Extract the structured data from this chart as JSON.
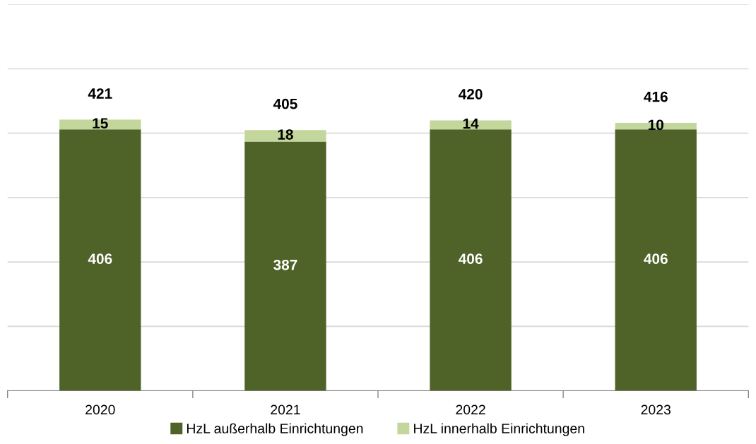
{
  "chart_data": {
    "type": "bar",
    "stacked": true,
    "categories": [
      "2020",
      "2021",
      "2022",
      "2023"
    ],
    "series": [
      {
        "name": "HzL außerhalb Einrichtungen",
        "color": "#4f6228",
        "values": [
          406,
          387,
          406,
          406
        ]
      },
      {
        "name": "HzL innerhalb Einrichtungen",
        "color": "#c3d69b",
        "values": [
          15,
          18,
          14,
          10
        ]
      }
    ],
    "totals": [
      "421",
      "405",
      "420",
      "416"
    ],
    "data_labels": true,
    "ylim": [
      0,
      600
    ],
    "yticks": [
      {
        "value": 0,
        "label": null
      },
      {
        "value": 100,
        "label": null
      },
      {
        "value": 200,
        "label": null
      },
      {
        "value": 300,
        "label": null
      },
      {
        "value": 400,
        "label": null
      },
      {
        "value": 500,
        "label": null
      },
      {
        "value": 600,
        "label": null
      }
    ],
    "tick_labels": "x",
    "grid": "y",
    "legend": "bottom"
  }
}
